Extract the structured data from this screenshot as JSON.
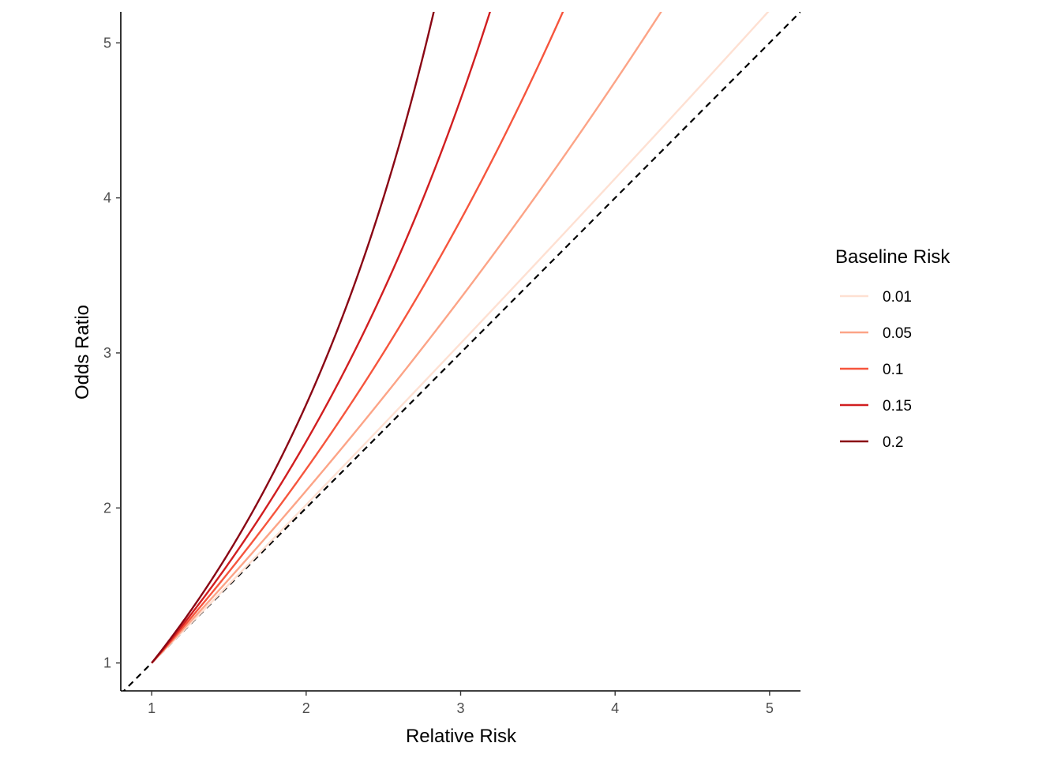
{
  "chart_data": {
    "type": "line",
    "title": "",
    "xlabel": "Relative Risk",
    "ylabel": "Odds Ratio",
    "xlim": [
      0.8,
      5.2
    ],
    "ylim": [
      0.82,
      5.2
    ],
    "xticks": [
      1,
      2,
      3,
      4,
      5
    ],
    "yticks": [
      1,
      2,
      3,
      4,
      5
    ],
    "grid": false,
    "legend": {
      "title": "Baseline Risk",
      "position": "right"
    },
    "reference_line": {
      "type": "identity",
      "style": "dashed",
      "color": "#000000"
    },
    "series": [
      {
        "name": "0.01",
        "baseline_risk": 0.01,
        "color": "#FEE0D2"
      },
      {
        "name": "0.05",
        "baseline_risk": 0.05,
        "color": "#FCA487"
      },
      {
        "name": "0.1",
        "baseline_risk": 0.1,
        "color": "#F6553D"
      },
      {
        "name": "0.15",
        "baseline_risk": 0.15,
        "color": "#D11E20"
      },
      {
        "name": "0.2",
        "baseline_risk": 0.2,
        "color": "#8A0614"
      }
    ]
  }
}
